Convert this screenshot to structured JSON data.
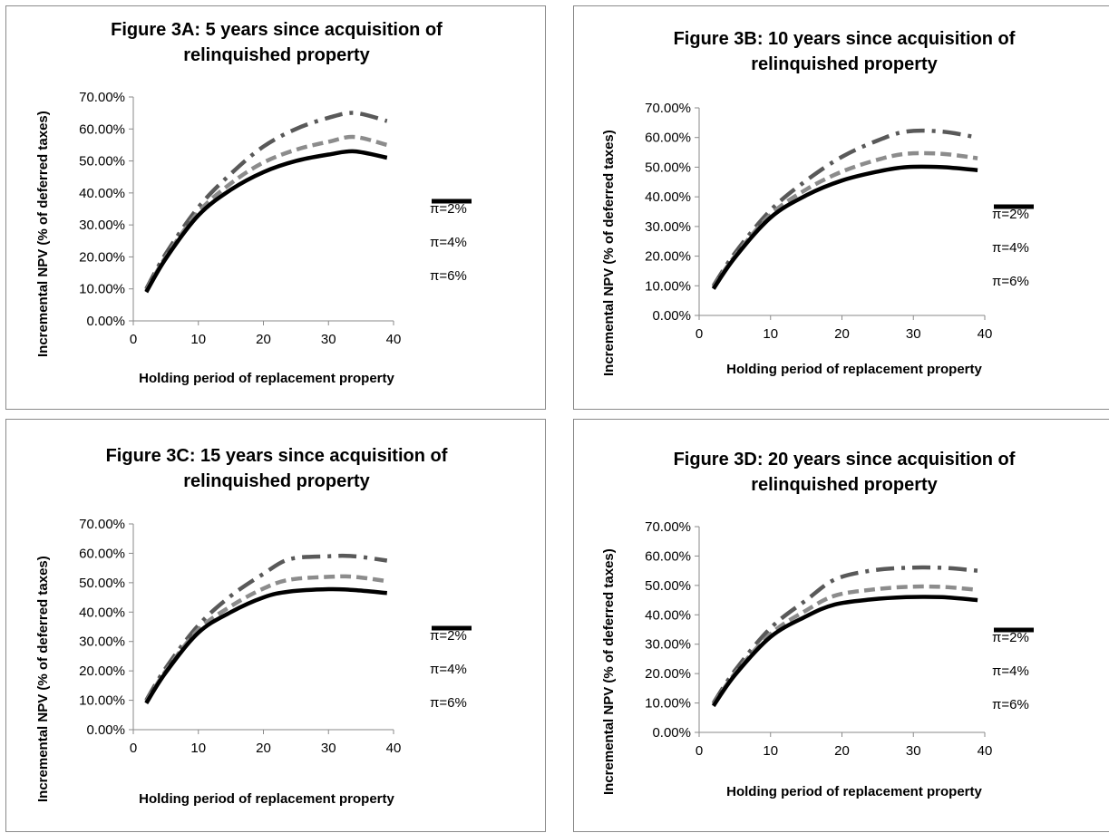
{
  "panels": [
    {
      "title_line1": "Figure 3A: 5 years since acquisition of",
      "title_line2": "relinquished property"
    },
    {
      "title_line1": "Figure 3B: 10 years since acquisition of",
      "title_line2": "relinquished property"
    },
    {
      "title_line1": "Figure 3C: 15 years since acquisition of",
      "title_line2": "relinquished property"
    },
    {
      "title_line1": "Figure 3D: 20 years since acquisition of",
      "title_line2": "relinquished property"
    }
  ],
  "legend": [
    "π=2%",
    "π=4%",
    "π=6%"
  ],
  "colors": {
    "pi2": "#595959",
    "pi4": "#8c8c8c",
    "pi6": "#000000",
    "axis": "#8a8a8a"
  },
  "chart_data": [
    {
      "type": "line",
      "title": "Figure 3A: 5 years since acquisition of relinquished property",
      "xlabel": "Holding period of replacement property",
      "ylabel": "Incremental NPV (% of deferred taxes)",
      "xlim": [
        0,
        40
      ],
      "ylim": [
        0,
        0.7
      ],
      "xticks": [
        0,
        10,
        20,
        30,
        40
      ],
      "yticks": [
        "0.00%",
        "10.00%",
        "20.00%",
        "30.00%",
        "40.00%",
        "50.00%",
        "60.00%",
        "70.00%"
      ],
      "x": [
        2,
        5,
        10,
        15,
        20,
        25,
        30,
        34,
        39
      ],
      "series": [
        {
          "name": "π=2%",
          "values": [
            0.1,
            0.21,
            0.355,
            0.46,
            0.545,
            0.6,
            0.635,
            0.65,
            0.625
          ]
        },
        {
          "name": "π=4%",
          "values": [
            0.095,
            0.2,
            0.34,
            0.43,
            0.495,
            0.535,
            0.56,
            0.575,
            0.55
          ]
        },
        {
          "name": "π=6%",
          "values": [
            0.09,
            0.195,
            0.33,
            0.41,
            0.465,
            0.5,
            0.52,
            0.53,
            0.51
          ]
        }
      ]
    },
    {
      "type": "line",
      "title": "Figure 3B: 10 years since acquisition of relinquished property",
      "xlabel": "Holding period of replacement property",
      "ylabel": "Incremental NPV (% of deferred taxes)",
      "xlim": [
        0,
        40
      ],
      "ylim": [
        0,
        0.7
      ],
      "xticks": [
        0,
        10,
        20,
        30,
        40
      ],
      "yticks": [
        "0.00%",
        "10.00%",
        "20.00%",
        "30.00%",
        "40.00%",
        "50.00%",
        "60.00%",
        "70.00%"
      ],
      "x": [
        2,
        5,
        10,
        15,
        20,
        25,
        29,
        34,
        39
      ],
      "series": [
        {
          "name": "π=2%",
          "values": [
            0.1,
            0.21,
            0.355,
            0.455,
            0.535,
            0.59,
            0.62,
            0.62,
            0.6
          ]
        },
        {
          "name": "π=4%",
          "values": [
            0.095,
            0.2,
            0.34,
            0.425,
            0.485,
            0.525,
            0.545,
            0.545,
            0.53
          ]
        },
        {
          "name": "π=6%",
          "values": [
            0.09,
            0.195,
            0.33,
            0.405,
            0.455,
            0.485,
            0.5,
            0.5,
            0.49
          ]
        }
      ]
    },
    {
      "type": "line",
      "title": "Figure 3C: 15 years since acquisition of relinquished property",
      "xlabel": "Holding period of replacement property",
      "ylabel": "Incremental NPV (% of deferred taxes)",
      "xlim": [
        0,
        40
      ],
      "ylim": [
        0,
        0.7
      ],
      "xticks": [
        0,
        10,
        20,
        30,
        40
      ],
      "yticks": [
        "0.00%",
        "10.00%",
        "20.00%",
        "30.00%",
        "40.00%",
        "50.00%",
        "60.00%",
        "70.00%"
      ],
      "x": [
        2,
        5,
        10,
        15,
        20,
        24,
        30,
        34,
        39
      ],
      "series": [
        {
          "name": "π=2%",
          "values": [
            0.1,
            0.21,
            0.355,
            0.455,
            0.53,
            0.58,
            0.59,
            0.59,
            0.575
          ]
        },
        {
          "name": "π=4%",
          "values": [
            0.095,
            0.2,
            0.34,
            0.42,
            0.48,
            0.51,
            0.52,
            0.52,
            0.505
          ]
        },
        {
          "name": "π=6%",
          "values": [
            0.09,
            0.195,
            0.33,
            0.4,
            0.45,
            0.47,
            0.478,
            0.475,
            0.465
          ]
        }
      ]
    },
    {
      "type": "line",
      "title": "Figure 3D: 20 years since acquisition of relinquished property",
      "xlabel": "Holding period of replacement property",
      "ylabel": "Incremental NPV (% of deferred taxes)",
      "xlim": [
        0,
        40
      ],
      "ylim": [
        0,
        0.7
      ],
      "xticks": [
        0,
        10,
        20,
        30,
        40
      ],
      "yticks": [
        "0.00%",
        "10.00%",
        "20.00%",
        "30.00%",
        "40.00%",
        "50.00%",
        "60.00%",
        "70.00%"
      ],
      "x": [
        2,
        5,
        10,
        15,
        19,
        24,
        29,
        34,
        39
      ],
      "series": [
        {
          "name": "π=2%",
          "values": [
            0.1,
            0.21,
            0.355,
            0.45,
            0.52,
            0.55,
            0.56,
            0.56,
            0.55
          ]
        },
        {
          "name": "π=4%",
          "values": [
            0.095,
            0.2,
            0.335,
            0.415,
            0.465,
            0.485,
            0.495,
            0.495,
            0.485
          ]
        },
        {
          "name": "π=6%",
          "values": [
            0.09,
            0.195,
            0.325,
            0.395,
            0.435,
            0.452,
            0.46,
            0.46,
            0.45
          ]
        }
      ]
    }
  ]
}
